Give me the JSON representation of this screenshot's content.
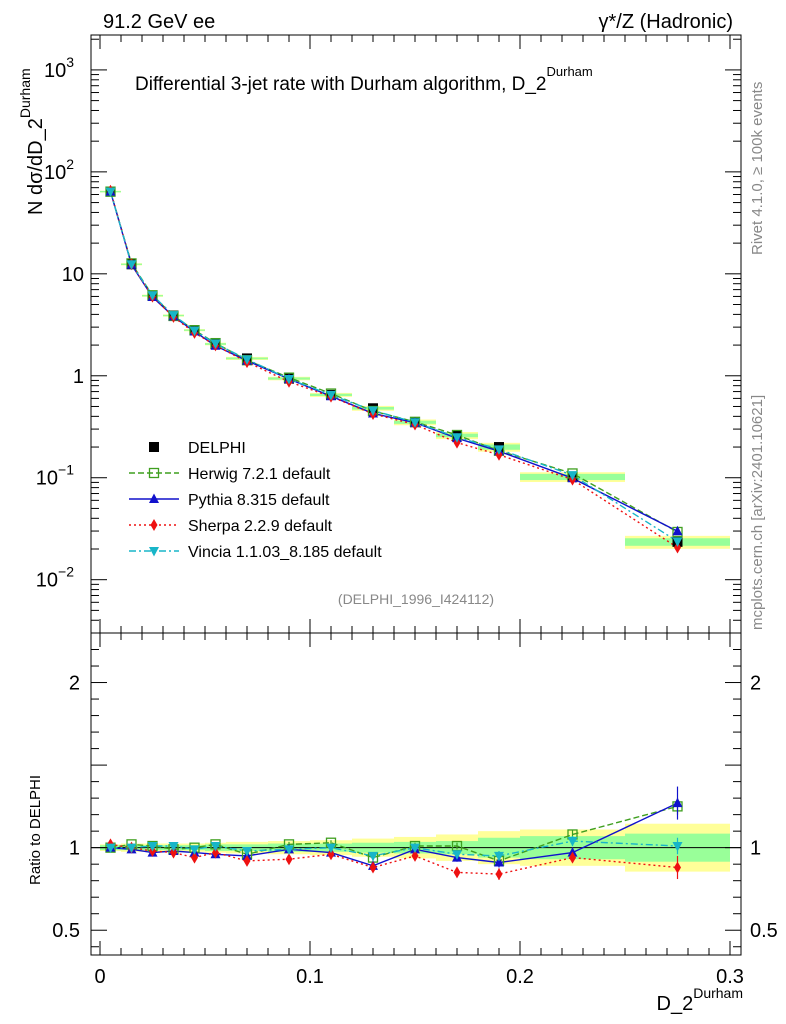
{
  "header": {
    "left": "91.2 GeV ee",
    "right": "γ*/Z (Hadronic)"
  },
  "side": {
    "top": "Rivet 4.1.0, ≥ 100k events",
    "bottom": "mcplots.cern.ch [arXiv:2401.10621]"
  },
  "chart_data": {
    "type": "line",
    "title": "Differential 3-jet rate with Durham algorithm, D_2",
    "title_sup": "Durham",
    "ylabel": "N  dσ/dD_2",
    "ylabel_sup": "Durham",
    "xlabel": "D_2",
    "xlabel_sup": "Durham",
    "ratio_ylabel": "Ratio to DELPHI",
    "watermark": "(DELPHI_1996_I424112)",
    "xlim": [
      0,
      0.3
    ],
    "ylim_log": [
      0.003,
      2200
    ],
    "ratio_ylim": [
      0.35,
      2.3
    ],
    "x_ticks": [
      {
        "v": 0,
        "label": "0"
      },
      {
        "v": 0.1,
        "label": "0.1"
      },
      {
        "v": 0.2,
        "label": "0.2"
      },
      {
        "v": 0.3,
        "label": "0.3"
      }
    ],
    "y_ticks": [
      {
        "v": 0.01,
        "base": "10",
        "exp": "−2"
      },
      {
        "v": 0.1,
        "base": "10",
        "exp": "−1"
      },
      {
        "v": 1,
        "base": "1",
        "exp": ""
      },
      {
        "v": 10,
        "base": "10",
        "exp": ""
      },
      {
        "v": 100,
        "base": "10",
        "exp": "2"
      },
      {
        "v": 1000,
        "base": "10",
        "exp": "3"
      }
    ],
    "ratio_ticks": [
      {
        "v": 0.5,
        "label": "0.5"
      },
      {
        "v": 1,
        "label": "1"
      },
      {
        "v": 2,
        "label": "2"
      }
    ],
    "x": [
      0.005,
      0.015,
      0.025,
      0.035,
      0.045,
      0.055,
      0.07,
      0.09,
      0.11,
      0.13,
      0.15,
      0.17,
      0.19,
      0.225,
      0.275
    ],
    "bin_edges": [
      0,
      0.01,
      0.02,
      0.03,
      0.04,
      0.05,
      0.06,
      0.08,
      0.1,
      0.12,
      0.14,
      0.16,
      0.18,
      0.2,
      0.25,
      0.3
    ],
    "band_inner": [
      0.015,
      0.015,
      0.015,
      0.015,
      0.015,
      0.02,
      0.02,
      0.025,
      0.025,
      0.03,
      0.035,
      0.04,
      0.06,
      0.07,
      0.085
    ],
    "band_outer": [
      0.02,
      0.025,
      0.025,
      0.025,
      0.025,
      0.03,
      0.035,
      0.04,
      0.045,
      0.055,
      0.065,
      0.08,
      0.1,
      0.11,
      0.145
    ],
    "data": {
      "name": "DELPHI",
      "values": [
        64,
        12.4,
        6.1,
        3.9,
        2.8,
        2.05,
        1.48,
        0.94,
        0.65,
        0.48,
        0.35,
        0.26,
        0.2,
        0.102,
        0.0235
      ]
    },
    "series": [
      {
        "name": "Herwig 7.2.1 default",
        "color": "#3f9f1f",
        "dash": "6,3",
        "marker": "open-square",
        "ratio": [
          1.0,
          1.02,
          1.01,
          0.99,
          1.0,
          1.02,
          0.96,
          1.02,
          1.03,
          0.94,
          1.01,
          1.01,
          0.92,
          1.08,
          1.25
        ],
        "ratio_err": [
          0.01,
          0.01,
          0.01,
          0.01,
          0.01,
          0.01,
          0.01,
          0.015,
          0.015,
          0.02,
          0.02,
          0.02,
          0.03,
          0.03,
          0.05
        ]
      },
      {
        "name": "Pythia 8.315 default",
        "color": "#1111cc",
        "dash": "",
        "marker": "triangle-up",
        "ratio": [
          1.0,
          0.99,
          0.97,
          0.98,
          0.97,
          0.96,
          0.95,
          0.99,
          0.97,
          0.89,
          0.99,
          0.94,
          0.91,
          0.97,
          1.27
        ],
        "ratio_err": [
          0.01,
          0.01,
          0.01,
          0.01,
          0.01,
          0.01,
          0.01,
          0.015,
          0.015,
          0.02,
          0.02,
          0.025,
          0.03,
          0.03,
          0.1
        ]
      },
      {
        "name": "Sherpa 2.2.9 default",
        "color": "#ee1111",
        "dash": "2,3",
        "marker": "diamond",
        "ratio": [
          1.02,
          1.0,
          0.98,
          0.97,
          0.94,
          0.97,
          0.92,
          0.93,
          0.96,
          0.88,
          0.95,
          0.85,
          0.84,
          0.94,
          0.88
        ],
        "ratio_err": [
          0.01,
          0.01,
          0.01,
          0.01,
          0.01,
          0.01,
          0.01,
          0.015,
          0.015,
          0.02,
          0.025,
          0.03,
          0.035,
          0.03,
          0.07
        ]
      },
      {
        "name": "Vincia 1.1.03_8.185 default",
        "color": "#18b5c8",
        "dash": "7,3,2,3",
        "marker": "triangle-down",
        "ratio": [
          1.0,
          1.0,
          1.01,
          1.01,
          0.99,
          1.01,
          0.98,
          0.99,
          1.0,
          0.95,
          1.0,
          0.96,
          0.95,
          1.04,
          1.01
        ],
        "ratio_err": [
          0.01,
          0.01,
          0.01,
          0.01,
          0.01,
          0.01,
          0.01,
          0.015,
          0.015,
          0.02,
          0.02,
          0.02,
          0.03,
          0.03,
          0.05
        ]
      }
    ]
  }
}
